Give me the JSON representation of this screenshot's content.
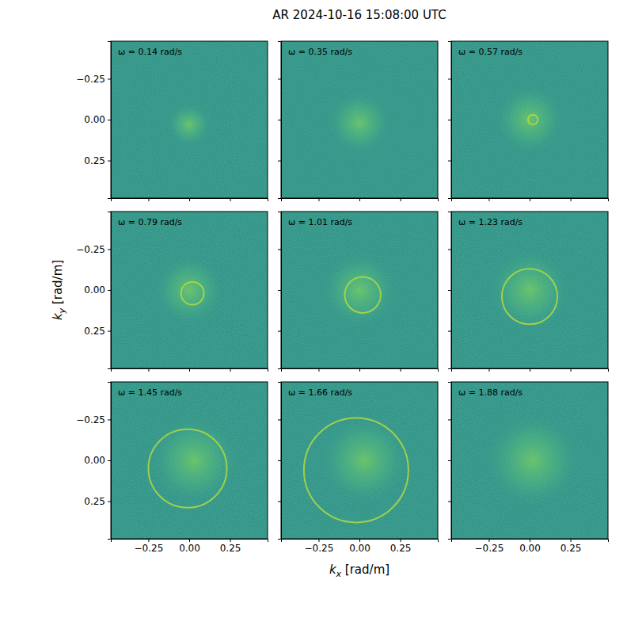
{
  "chart_data": {
    "type": "heatmap_grid",
    "title": "AR 2024-10-16 15:08:00 UTC",
    "xlabel": "kx [rad/m]",
    "ylabel": "ky [rad/m]",
    "xlim": [
      -0.48,
      0.48
    ],
    "ylim": [
      0.48,
      -0.48
    ],
    "xticks": [
      {
        "value": -0.25,
        "label": "−0.25"
      },
      {
        "value": 0,
        "label": "0.00"
      },
      {
        "value": 0.25,
        "label": "0.25"
      }
    ],
    "yticks": [
      {
        "value": -0.25,
        "label": "−0.25"
      },
      {
        "value": 0,
        "label": "0.00"
      },
      {
        "value": 0.25,
        "label": "0.25"
      }
    ],
    "color": "#2a8f82",
    "panels": [
      {
        "label": "ω = 0.14 rad/s",
        "blob": {
          "kx": 0.0,
          "ky": 0.03,
          "radius": 0.14
        }
      },
      {
        "label": "ω = 0.35 rad/s",
        "blob": {
          "kx": 0.0,
          "ky": 0.02,
          "radius": 0.2
        }
      },
      {
        "label": "ω = 0.57 rad/s",
        "blob": {
          "kx": 0.0,
          "ky": 0.0,
          "radius": 0.22
        },
        "ring": {
          "kx": 0.02,
          "ky": 0.0,
          "radius": 0.03
        }
      },
      {
        "label": "ω = 0.79 rad/s",
        "blob": {
          "kx": 0.0,
          "ky": 0.0,
          "radius": 0.22
        },
        "ring": {
          "kx": 0.02,
          "ky": 0.02,
          "radius": 0.07
        }
      },
      {
        "label": "ω = 1.01 rad/s",
        "blob": {
          "kx": 0.0,
          "ky": 0.0,
          "radius": 0.24
        },
        "ring": {
          "kx": 0.02,
          "ky": 0.03,
          "radius": 0.11
        }
      },
      {
        "label": "ω = 1.23 rad/s",
        "blob": {
          "kx": 0.0,
          "ky": 0.0,
          "radius": 0.26
        },
        "ring": {
          "kx": 0.0,
          "ky": 0.04,
          "radius": 0.17
        }
      },
      {
        "label": "ω = 1.45 rad/s",
        "blob": {
          "kx": 0.03,
          "ky": 0.0,
          "radius": 0.28
        },
        "ring": {
          "kx": -0.01,
          "ky": 0.05,
          "radius": 0.24
        }
      },
      {
        "label": "ω = 1.66 rad/s",
        "blob": {
          "kx": 0.03,
          "ky": 0.0,
          "radius": 0.28
        },
        "ring": {
          "kx": -0.02,
          "ky": 0.06,
          "radius": 0.32
        }
      },
      {
        "label": "ω = 1.88 rad/s",
        "blob": {
          "kx": 0.02,
          "ky": 0.0,
          "radius": 0.3
        }
      }
    ]
  }
}
